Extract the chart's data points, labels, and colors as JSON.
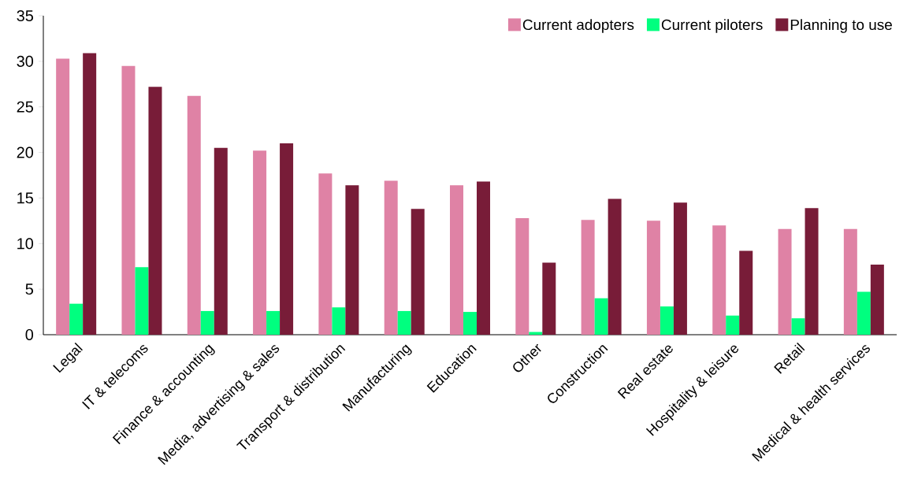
{
  "chart_data": {
    "type": "bar",
    "categories": [
      "Legal",
      "IT & telecoms",
      "Finance & accounting",
      "Media, advertising & sales",
      "Transport & distribution",
      "Manufacturing",
      "Education",
      "Other",
      "Construction",
      "Real estate",
      "Hospitality & leisure",
      "Retail",
      "Medical & health services"
    ],
    "series": [
      {
        "name": "Current adopters",
        "color": "#df82a5",
        "values": [
          30.3,
          29.5,
          26.2,
          20.2,
          17.7,
          16.9,
          16.4,
          12.8,
          12.6,
          12.5,
          12.0,
          11.6,
          11.6
        ]
      },
      {
        "name": "Current piloters",
        "color": "#00ff7f",
        "values": [
          3.4,
          7.4,
          2.6,
          2.6,
          3.0,
          2.6,
          2.5,
          0.3,
          4.0,
          3.1,
          2.1,
          1.8,
          4.7
        ]
      },
      {
        "name": "Planning to use",
        "color": "#781c38",
        "values": [
          30.9,
          27.2,
          20.5,
          21.0,
          16.4,
          13.8,
          16.8,
          7.9,
          14.9,
          14.5,
          9.2,
          13.9,
          7.7
        ]
      }
    ],
    "ylim": [
      0,
      35
    ],
    "yticks": [
      0,
      5,
      10,
      15,
      20,
      25,
      30,
      35
    ],
    "grid": false,
    "legend": "top right"
  }
}
